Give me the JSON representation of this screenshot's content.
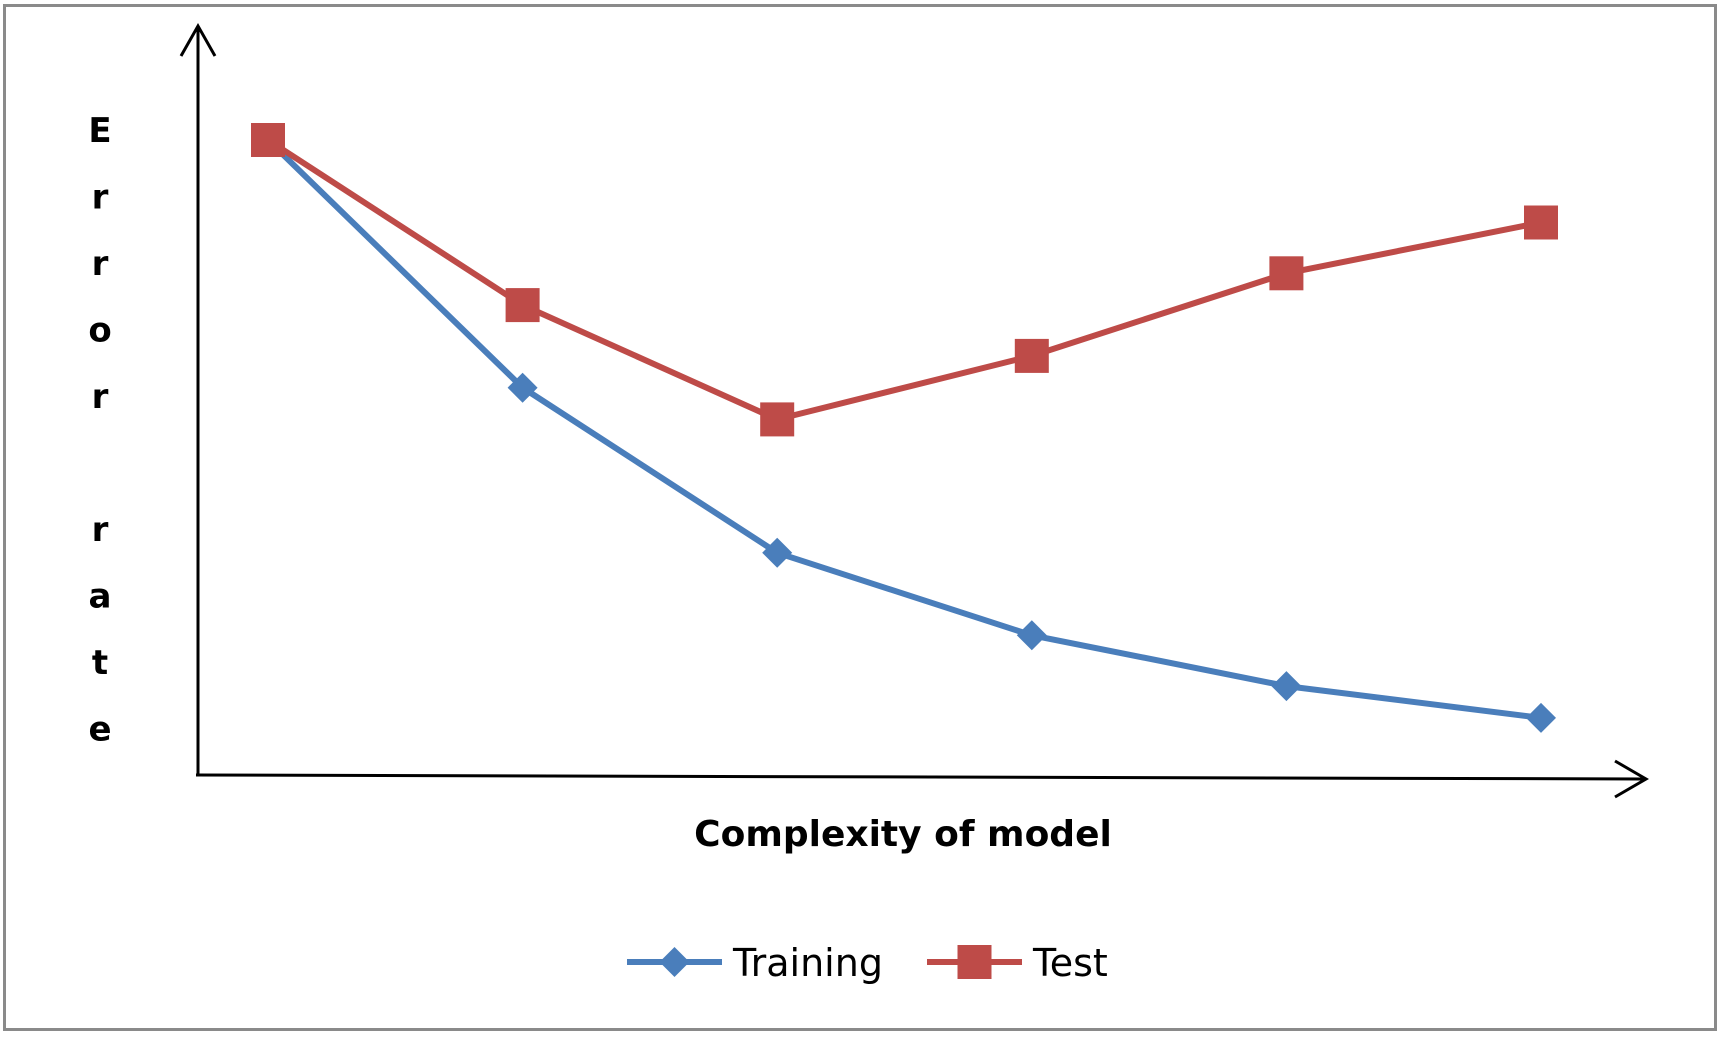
{
  "chart_data": {
    "type": "line",
    "title": "",
    "xlabel": "Complexity of model",
    "ylabel": "Error rate",
    "x": [
      1,
      2,
      3,
      4,
      5,
      6
    ],
    "xlim": [
      0.7,
      7.2
    ],
    "ylim": [
      0,
      100
    ],
    "grid": false,
    "axis_ticks": false,
    "legend_position": "bottom",
    "series": [
      {
        "name": "Training",
        "color": "#4a7ebb",
        "marker": "diamond",
        "values": [
          100,
          61,
          35,
          22,
          14,
          9
        ]
      },
      {
        "name": "Test",
        "color": "#be4b48",
        "marker": "square",
        "values": [
          100,
          74,
          56,
          66,
          79,
          87
        ]
      }
    ]
  }
}
